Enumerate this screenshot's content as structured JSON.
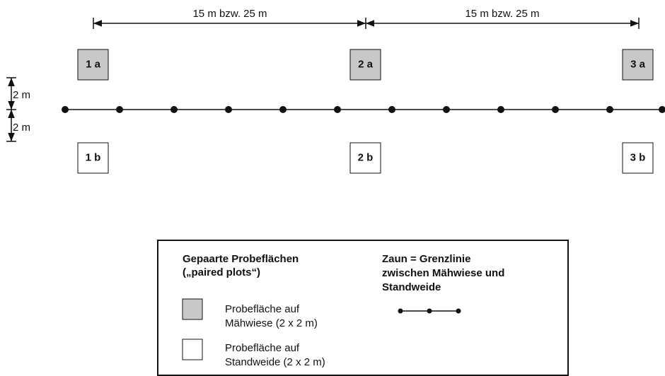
{
  "dimensions": {
    "spacing": [
      "15 m bzw. 25 m",
      "15 m bzw. 25 m"
    ],
    "offset": [
      "2 m",
      "2 m"
    ]
  },
  "plots": {
    "top": [
      "1 a",
      "2 a",
      "3 a"
    ],
    "bottom": [
      "1 b",
      "2 b",
      "3 b"
    ]
  },
  "legend": {
    "paired_title": [
      "Gepaarte Probeflächen",
      "(„paired plots“)"
    ],
    "meadow": [
      "Probefläche auf",
      "Mähwiese (2 x 2 m)"
    ],
    "pasture": [
      "Probefläche auf",
      "Standweide (2 x 2 m)"
    ],
    "fence_title": [
      "Zaun = Grenzlinie",
      "zwischen Mähwiese und",
      "Standweide"
    ]
  }
}
